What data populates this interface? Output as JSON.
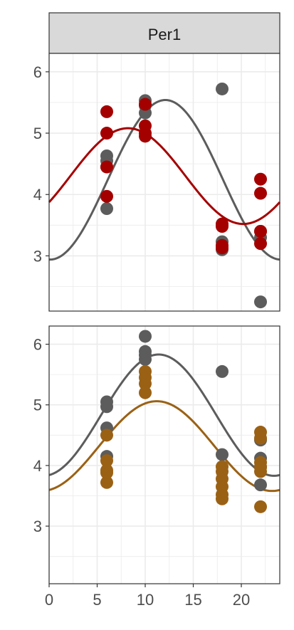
{
  "colors": {
    "control": "#5c5c5c",
    "panel_1_series": "#a50000",
    "panel_2_series": "#9a6115",
    "grid": "#ebebeb",
    "strip_fill": "#d9d9d9",
    "border": "#333333"
  },
  "chart_data": {
    "type": "scatter",
    "facet_label": "Per1",
    "x_ticks": [
      0,
      5,
      10,
      15,
      20
    ],
    "xlim": [
      0,
      24
    ],
    "grid": true,
    "legend": "none",
    "panels": [
      {
        "ylim": [
          2.1,
          6.3
        ],
        "y_ticks": [
          3,
          4,
          5,
          6
        ],
        "series": [
          {
            "color": "#5c5c5c",
            "points": [
              [
                6,
                3.77
              ],
              [
                6,
                4.45
              ],
              [
                6,
                4.55
              ],
              [
                6,
                4.63
              ],
              [
                10,
                5.53
              ],
              [
                10,
                5.45
              ],
              [
                10,
                5.33
              ],
              [
                18,
                5.72
              ],
              [
                18,
                3.23
              ],
              [
                18,
                3.1
              ],
              [
                22,
                3.4
              ],
              [
                22,
                3.3
              ],
              [
                22,
                2.25
              ]
            ],
            "curve": {
              "mesor": 4.24,
              "amplitude": 1.3,
              "peak_time": 12.1,
              "period": 24
            }
          },
          {
            "color": "#a50000",
            "points": [
              [
                6,
                5.35
              ],
              [
                6,
                5.0
              ],
              [
                6,
                4.45
              ],
              [
                6,
                3.97
              ],
              [
                10,
                5.47
              ],
              [
                10,
                5.12
              ],
              [
                10,
                5.0
              ],
              [
                10,
                4.95
              ],
              [
                18,
                3.52
              ],
              [
                18,
                3.48
              ],
              [
                18,
                3.17
              ],
              [
                18,
                3.13
              ],
              [
                22,
                4.25
              ],
              [
                22,
                4.02
              ],
              [
                22,
                3.4
              ],
              [
                22,
                3.2
              ]
            ],
            "curve": {
              "mesor": 4.3,
              "amplitude": 0.78,
              "peak_time": 8.2,
              "period": 24
            }
          }
        ]
      },
      {
        "ylim": [
          2.05,
          6.3
        ],
        "y_ticks": [
          3,
          4,
          5,
          6
        ],
        "series": [
          {
            "color": "#5c5c5c",
            "points": [
              [
                6,
                5.05
              ],
              [
                6,
                4.97
              ],
              [
                6,
                4.62
              ],
              [
                6,
                4.15
              ],
              [
                10,
                6.13
              ],
              [
                10,
                5.88
              ],
              [
                10,
                5.82
              ],
              [
                10,
                5.75
              ],
              [
                18,
                5.55
              ],
              [
                18,
                4.18
              ],
              [
                22,
                4.42
              ],
              [
                22,
                4.12
              ],
              [
                22,
                3.98
              ],
              [
                22,
                3.68
              ]
            ],
            "curve": {
              "mesor": 4.83,
              "amplitude": 1.0,
              "peak_time": 11.4,
              "period": 24
            }
          },
          {
            "color": "#9a6115",
            "points": [
              [
                6,
                4.5
              ],
              [
                6,
                4.08
              ],
              [
                6,
                3.92
              ],
              [
                6,
                3.88
              ],
              [
                6,
                3.72
              ],
              [
                10,
                5.55
              ],
              [
                10,
                5.45
              ],
              [
                10,
                5.35
              ],
              [
                10,
                5.2
              ],
              [
                18,
                3.98
              ],
              [
                18,
                3.9
              ],
              [
                18,
                3.78
              ],
              [
                18,
                3.65
              ],
              [
                18,
                3.52
              ],
              [
                18,
                3.45
              ],
              [
                22,
                4.55
              ],
              [
                22,
                4.45
              ],
              [
                22,
                4.05
              ],
              [
                22,
                3.97
              ],
              [
                22,
                3.9
              ],
              [
                22,
                3.32
              ]
            ],
            "curve": {
              "mesor": 4.32,
              "amplitude": 0.74,
              "peak_time": 11.2,
              "period": 24
            }
          }
        ]
      }
    ]
  }
}
